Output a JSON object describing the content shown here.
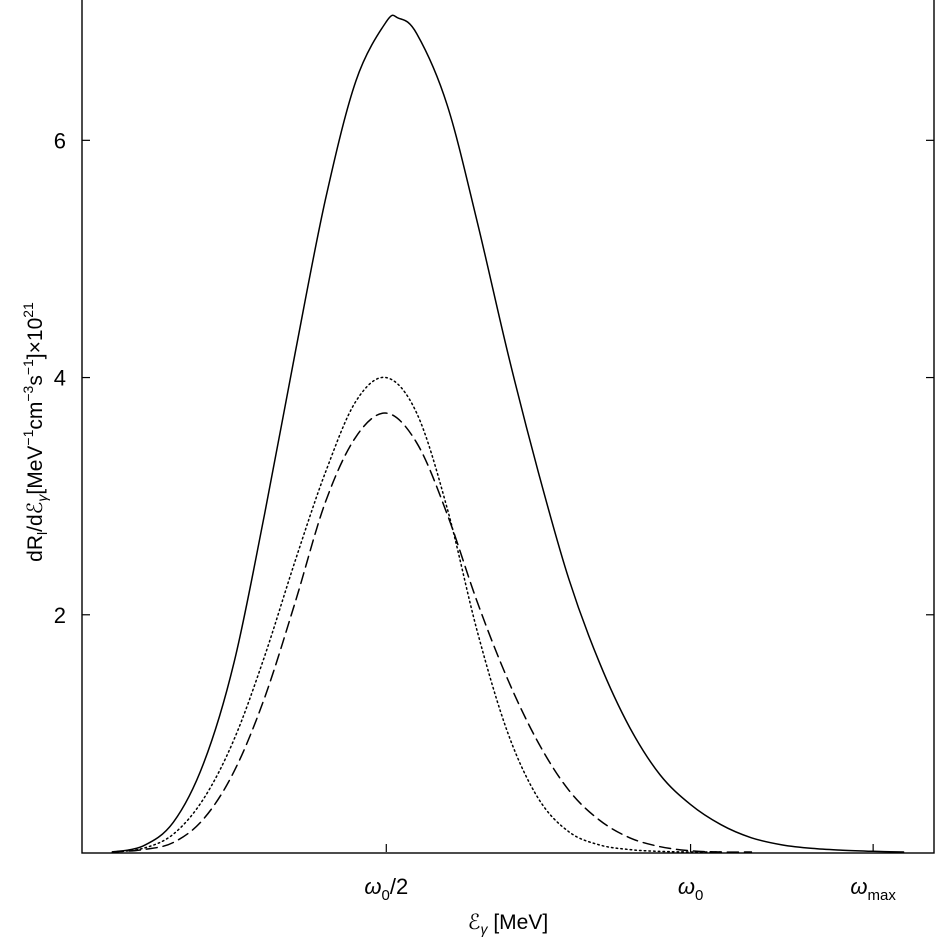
{
  "chart_data": {
    "type": "line",
    "xlabel": {
      "main": "ℰ",
      "sub": "γ",
      "rest": " [MeV]"
    },
    "ylabel": {
      "p1": "dR",
      "sub1": "l",
      "p2": "/dℰ",
      "sub2": "γ",
      "p3": "[MeV",
      "sup1": "−1",
      "p4": "cm",
      "sup2": "−3",
      "p5": "s",
      "sup3": "−1",
      "p6": "]×10",
      "sup4": "21"
    },
    "xlim": [
      0,
      1.4
    ],
    "ylim": [
      0,
      7.2
    ],
    "x_ticks": [
      {
        "value": 0.5,
        "main": "ω",
        "sub": "0",
        "tail": "/2"
      },
      {
        "value": 1.0,
        "main": "ω",
        "sub": "0",
        "tail": ""
      },
      {
        "value": 1.3,
        "main": "ω",
        "sub": "max",
        "tail": ""
      }
    ],
    "y_ticks": [
      {
        "value": 2,
        "label": "2"
      },
      {
        "value": 4,
        "label": "4"
      },
      {
        "value": 6,
        "label": "6"
      }
    ],
    "series": [
      {
        "style": "solid",
        "x": [
          0.05,
          0.1,
          0.15,
          0.2,
          0.25,
          0.3,
          0.35,
          0.4,
          0.45,
          0.5,
          0.52,
          0.55,
          0.6,
          0.65,
          0.7,
          0.75,
          0.8,
          0.85,
          0.9,
          0.95,
          1.0,
          1.05,
          1.1,
          1.15,
          1.2,
          1.25,
          1.3,
          1.35
        ],
        "y": [
          0.0,
          0.05,
          0.25,
          0.75,
          1.6,
          2.85,
          4.2,
          5.5,
          6.5,
          7.0,
          7.03,
          6.9,
          6.3,
          5.3,
          4.2,
          3.2,
          2.3,
          1.6,
          1.05,
          0.65,
          0.4,
          0.23,
          0.12,
          0.06,
          0.03,
          0.015,
          0.006,
          0.0
        ]
      },
      {
        "style": "dotted",
        "x": [
          0.05,
          0.1,
          0.15,
          0.2,
          0.25,
          0.3,
          0.35,
          0.4,
          0.45,
          0.5,
          0.55,
          0.6,
          0.65,
          0.7,
          0.75,
          0.8,
          0.85,
          0.9,
          0.95,
          1.0,
          1.05
        ],
        "y": [
          0.0,
          0.03,
          0.15,
          0.45,
          0.95,
          1.65,
          2.45,
          3.2,
          3.8,
          4.0,
          3.7,
          2.9,
          1.85,
          1.0,
          0.45,
          0.17,
          0.06,
          0.02,
          0.005,
          0.0,
          0.0
        ]
      },
      {
        "style": "dashed",
        "x": [
          0.05,
          0.1,
          0.15,
          0.2,
          0.25,
          0.3,
          0.35,
          0.4,
          0.45,
          0.5,
          0.55,
          0.6,
          0.65,
          0.7,
          0.75,
          0.8,
          0.85,
          0.9,
          0.95,
          1.0,
          1.05,
          1.1
        ],
        "y": [
          0.0,
          0.02,
          0.08,
          0.28,
          0.68,
          1.3,
          2.1,
          2.95,
          3.5,
          3.7,
          3.45,
          2.85,
          2.1,
          1.45,
          0.92,
          0.52,
          0.27,
          0.12,
          0.045,
          0.01,
          0.0,
          0.0
        ]
      }
    ],
    "grid": false,
    "legend": false
  }
}
